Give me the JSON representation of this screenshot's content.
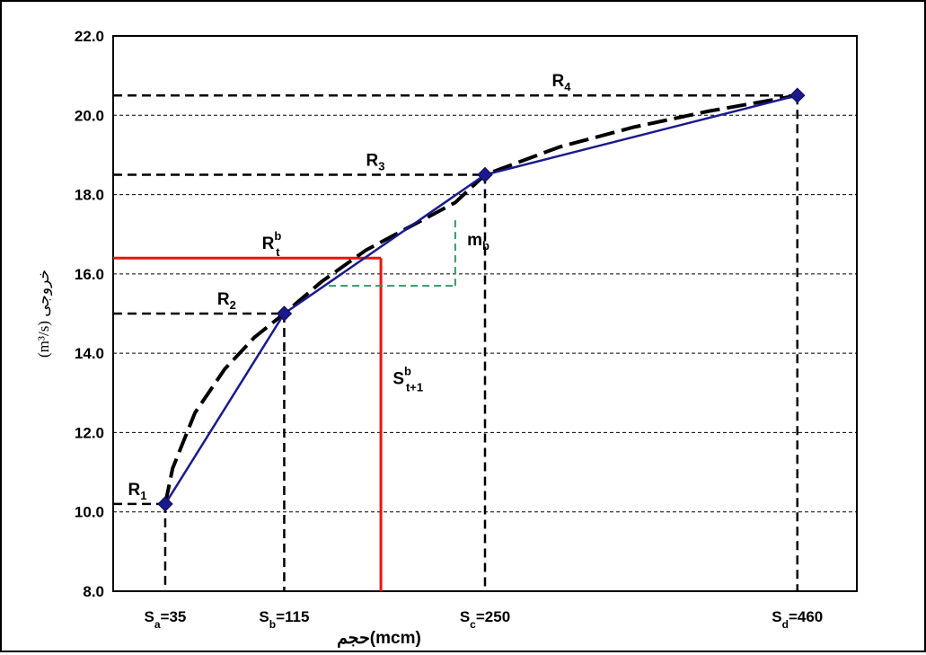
{
  "chart_data": {
    "type": "line",
    "ylim": [
      8,
      22
    ],
    "yticks": [
      "8.0",
      "10.0",
      "12.0",
      "14.0",
      "16.0",
      "18.0",
      "20.0",
      "22.0"
    ],
    "xlim": [
      0,
      500
    ],
    "x": [
      35,
      115,
      250,
      460
    ],
    "xtick_labels": [
      {
        "main": "S",
        "sub": "a",
        "rest": "=35"
      },
      {
        "main": "S",
        "sub": "b",
        "rest": "=115"
      },
      {
        "main": "S",
        "sub": "c",
        "rest": "=250"
      },
      {
        "main": "S",
        "sub": "d",
        "rest": "=460"
      }
    ],
    "xlabel": "(mcm)حجم",
    "ylabel": "(m³/s) خروجی",
    "series": [
      {
        "style": "solid",
        "color": "#1a1a8c",
        "marker": "diamond",
        "x": [
          35,
          115,
          250,
          460
        ],
        "y": [
          10.2,
          15.0,
          18.5,
          20.5
        ]
      },
      {
        "style": "dashed",
        "color": "#000000",
        "x": [
          35,
          40,
          55,
          75,
          95,
          115,
          140,
          170,
          200,
          230,
          250,
          300,
          350,
          400,
          460
        ],
        "y": [
          10.2,
          11.1,
          12.5,
          13.6,
          14.4,
          15.0,
          15.8,
          16.6,
          17.2,
          17.8,
          18.5,
          19.2,
          19.7,
          20.1,
          20.5
        ]
      }
    ],
    "reference_lines": {
      "horizontal": [
        10.2,
        15.0,
        18.5,
        20.5
      ],
      "vertical": [
        35,
        115,
        250,
        460
      ]
    },
    "interpolation": {
      "x": 180,
      "y": 16.4,
      "color": "#ee1111"
    },
    "slope_marker": {
      "x0": 145,
      "x1": 230,
      "y0": 15.7,
      "y1": 17.4,
      "color": "#339966"
    },
    "annotations": [
      {
        "main": "R",
        "sub": "1",
        "sup": "",
        "x": 10,
        "y": 10.2
      },
      {
        "main": "R",
        "sub": "2",
        "sup": "",
        "x": 70,
        "y": 15.0
      },
      {
        "main": "R",
        "sup": "b",
        "sub": "t",
        "x": 100,
        "y": 16.4
      },
      {
        "main": "m",
        "sub": "b",
        "sup": "",
        "x": 238,
        "y": 16.5
      },
      {
        "main": "R",
        "sub": "3",
        "sup": "",
        "x": 170,
        "y": 18.5
      },
      {
        "main": "R",
        "sub": "4",
        "sup": "",
        "x": 295,
        "y": 20.5
      },
      {
        "main": "S",
        "sup": "b",
        "sub": "t+1",
        "x": 188,
        "y": 13.0
      }
    ]
  }
}
